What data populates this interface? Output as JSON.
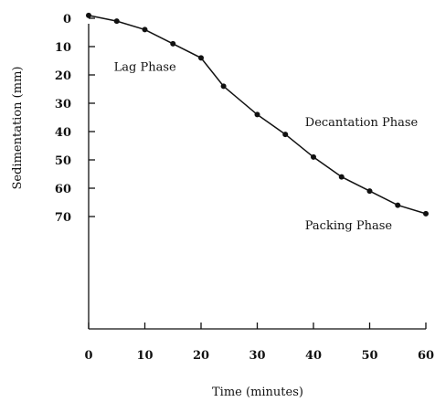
{
  "chart_data": {
    "type": "line",
    "title": "",
    "xlabel": "Time (minutes)",
    "ylabel": "Sedimentation (mm)",
    "xlim": [
      0,
      60
    ],
    "ylim": [
      0,
      70
    ],
    "y_inverted": true,
    "grid": false,
    "x_ticks": [
      0,
      10,
      20,
      30,
      40,
      50,
      60
    ],
    "y_ticks": [
      0,
      10,
      20,
      30,
      40,
      50,
      60,
      70
    ],
    "x_tick_labels": [
      "0",
      "10",
      "20",
      "30",
      "40",
      "50",
      "60"
    ],
    "y_tick_labels": [
      "0",
      "10",
      "20",
      "30",
      "40",
      "50",
      "60",
      "70"
    ],
    "series": [
      {
        "x": [
          0,
          5,
          10,
          15,
          20,
          24,
          30,
          35,
          40,
          45,
          50,
          55,
          60
        ],
        "values": [
          -1,
          1,
          4,
          9,
          14,
          24,
          34,
          41,
          49,
          56,
          61,
          66,
          69
        ]
      }
    ],
    "annotations": [
      {
        "text": "Lag Phase",
        "x": 4.5,
        "y": 18.5
      },
      {
        "text": "Decantation Phase",
        "x": 38.5,
        "y": 38
      },
      {
        "text": "Packing Phase",
        "x": 38.5,
        "y": 74.5
      }
    ]
  }
}
